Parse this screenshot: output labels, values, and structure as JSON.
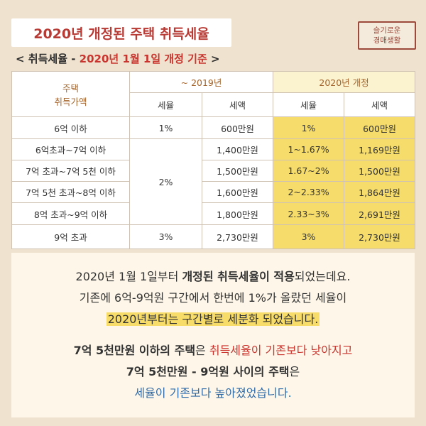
{
  "title": "2020년 개정된 주택 취득세율",
  "stamp": {
    "line1": "슬기로운",
    "line2": "경매생활"
  },
  "subtitle": {
    "prefix": "< 취득세율 - ",
    "highlight": "2020년 1월 1일 개정 기준",
    "suffix": " >"
  },
  "table": {
    "col_group_header": "주택 취득가액",
    "col_group_header_line1": "주택",
    "col_group_header_line2": "취득가액",
    "old_header": "~ 2019년",
    "new_header": "2020년 개정",
    "rate_label": "세율",
    "amount_label": "세액",
    "rows": [
      {
        "range": "6억 이하",
        "old_rate": "1%",
        "old_amount": "600만원",
        "new_rate": "1%",
        "new_amount": "600만원"
      },
      {
        "range": "6억초과~7억 이하",
        "old_rate": "2%",
        "old_amount": "1,400만원",
        "new_rate": "1~1.67%",
        "new_amount": "1,169만원"
      },
      {
        "range": "7억 초과~7억 5천 이하",
        "old_rate": "2%",
        "old_amount": "1,500만원",
        "new_rate": "1.67~2%",
        "new_amount": "1,500만원"
      },
      {
        "range": "7억 5천 초과~8억 이하",
        "old_rate": "2%",
        "old_amount": "1,600만원",
        "new_rate": "2~2.33%",
        "new_amount": "1,864만원"
      },
      {
        "range": "8억 초과~9억 이하",
        "old_rate": "2%",
        "old_amount": "1,800만원",
        "new_rate": "2.33~3%",
        "new_amount": "2,691만원"
      },
      {
        "range": "9억 초과",
        "old_rate": "3%",
        "old_amount": "2,730만원",
        "new_rate": "3%",
        "new_amount": "2,730만원"
      }
    ]
  },
  "note": {
    "p1_a": "2020년 1월 1일부터 ",
    "p1_b": "개정된 취득세율이 적용",
    "p1_c": "되었는데요.",
    "p2": "기존에 6억-9억원 구간에서 한번에 1%가 올랐던 세율이",
    "p3": "2020년부터는 구간별로 세분화 되었습니다.",
    "p4_a": "7억 5천만원 이하의 주택",
    "p4_b": "은 ",
    "p4_c": "취득세율이 기존보다 낮아지고",
    "p5_a": "7억 5천만원 - 9억원 사이의 주택",
    "p5_b": "은",
    "p6": "세율이 기존보다 높아졌었습니다."
  },
  "colors": {
    "title_red": "#b83a35",
    "highlight_yellow": "#f6dd6b",
    "blue_text": "#2f6aa8",
    "background": "#efe2cf"
  }
}
